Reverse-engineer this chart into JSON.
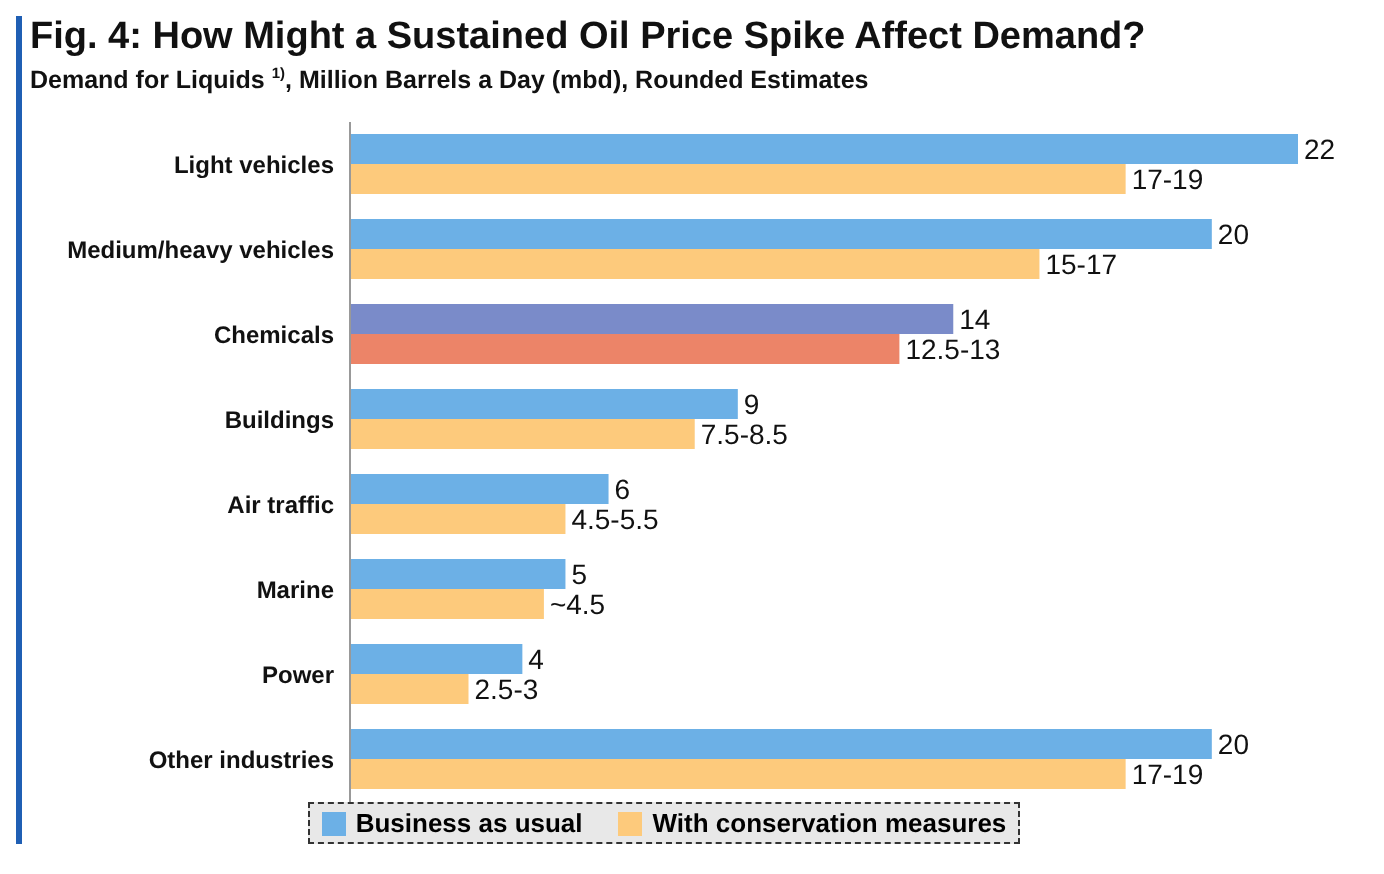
{
  "chart_data": {
    "type": "bar",
    "orientation": "horizontal",
    "title": "Fig. 4: How Might a Sustained Oil Price Spike Affect Demand?",
    "subtitle": "Demand for Liquids $^{1)}$, Million Barrels a Day (mbd), Rounded Estimates",
    "categories": [
      "Light vehicles",
      "Medium/heavy vehicles",
      "Chemicals",
      "Buildings",
      "Air traffic",
      "Marine",
      "Power",
      "Other industries"
    ],
    "series": [
      {
        "name": "Business as usual",
        "color": "#6cb0e6",
        "colors": [
          "#6cb0e6",
          "#6cb0e6",
          "#7a8bc9",
          "#6cb0e6",
          "#6cb0e6",
          "#6cb0e6",
          "#6cb0e6",
          "#6cb0e6"
        ],
        "values": [
          22,
          20,
          14,
          9,
          6,
          5,
          4,
          20
        ]
      },
      {
        "name": "With conservation measures",
        "color": "#fdca7c",
        "colors": [
          "#fdca7c",
          "#fdca7c",
          "#ec8468",
          "#fdca7c",
          "#fdca7c",
          "#fdca7c",
          "#fdca7c",
          "#fdca7c"
        ],
        "values": [
          18,
          16,
          12.75,
          8,
          5,
          4.5,
          2.75,
          18
        ],
        "value_labels": [
          "17-19",
          "15-17",
          "12.5-13",
          "7.5-8.5",
          "4.5-5.5",
          "~4.5",
          "2.5-3",
          "17-19"
        ]
      }
    ],
    "data_labels": true,
    "legend": "bottom"
  }
}
